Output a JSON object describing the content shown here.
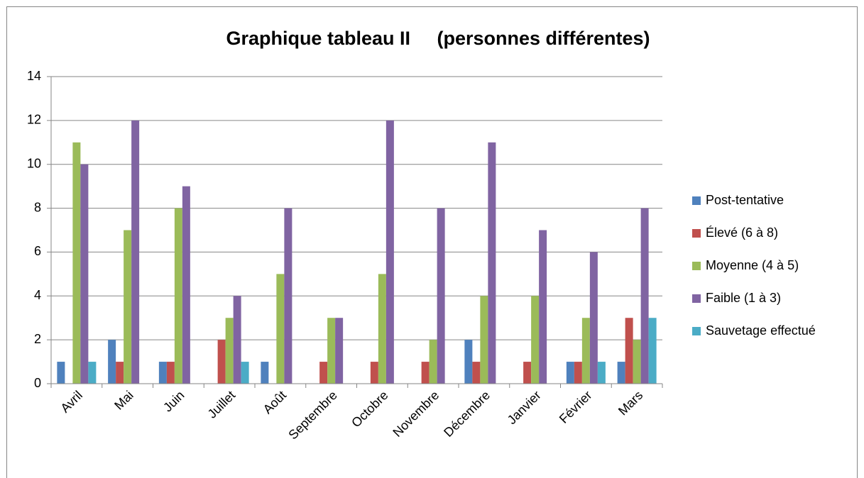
{
  "chart_data": {
    "type": "bar",
    "title": "Graphique tableau II     (personnes différentes)",
    "categories": [
      "Avril",
      "Mai",
      "Juin",
      "Juillet",
      "Août",
      "Septembre",
      "Octobre",
      "Novembre",
      "Décembre",
      "Janvier",
      "Février",
      "Mars"
    ],
    "series": [
      {
        "name": "Post-tentative",
        "color": "#4f81bd",
        "values": [
          1,
          2,
          1,
          0,
          1,
          0,
          0,
          0,
          2,
          0,
          1,
          1
        ]
      },
      {
        "name": "Élevé (6 à 8)",
        "color": "#c0504d",
        "values": [
          0,
          1,
          1,
          2,
          0,
          1,
          1,
          1,
          1,
          1,
          1,
          3
        ]
      },
      {
        "name": "Moyenne (4 à 5)",
        "color": "#9bbb59",
        "values": [
          11,
          7,
          8,
          3,
          5,
          3,
          5,
          2,
          4,
          4,
          3,
          2
        ]
      },
      {
        "name": "Faible (1 à 3)",
        "color": "#8064a2",
        "values": [
          10,
          12,
          9,
          4,
          8,
          3,
          12,
          8,
          11,
          7,
          6,
          8
        ]
      },
      {
        "name": "Sauvetage effectué",
        "color": "#4bacc6",
        "values": [
          1,
          0,
          0,
          1,
          0,
          0,
          0,
          0,
          0,
          0,
          1,
          3
        ]
      }
    ],
    "ylim": [
      0,
      14
    ],
    "yticks": [
      0,
      2,
      4,
      6,
      8,
      10,
      12,
      14
    ],
    "grid": true,
    "legend": "right"
  }
}
